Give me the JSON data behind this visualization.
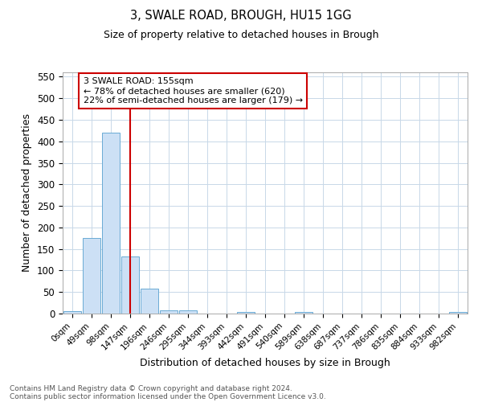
{
  "title1": "3, SWALE ROAD, BROUGH, HU15 1GG",
  "title2": "Size of property relative to detached houses in Brough",
  "xlabel": "Distribution of detached houses by size in Brough",
  "ylabel": "Number of detached properties",
  "bin_labels": [
    "0sqm",
    "49sqm",
    "98sqm",
    "147sqm",
    "196sqm",
    "246sqm",
    "295sqm",
    "344sqm",
    "393sqm",
    "442sqm",
    "491sqm",
    "540sqm",
    "589sqm",
    "638sqm",
    "687sqm",
    "737sqm",
    "786sqm",
    "835sqm",
    "884sqm",
    "933sqm",
    "982sqm"
  ],
  "bar_values": [
    5,
    175,
    420,
    132,
    57,
    8,
    8,
    0,
    0,
    4,
    0,
    0,
    4,
    0,
    0,
    0,
    0,
    0,
    0,
    0,
    3
  ],
  "bar_color": "#cce0f5",
  "bar_edge_color": "#6aaad4",
  "vline_x": 3,
  "vline_color": "#cc0000",
  "annotation_text": "3 SWALE ROAD: 155sqm\n← 78% of detached houses are smaller (620)\n22% of semi-detached houses are larger (179) →",
  "annotation_box_color": "#ffffff",
  "annotation_box_edge": "#cc0000",
  "ylim": [
    0,
    560
  ],
  "yticks": [
    0,
    50,
    100,
    150,
    200,
    250,
    300,
    350,
    400,
    450,
    500,
    550
  ],
  "footer1": "Contains HM Land Registry data © Crown copyright and database right 2024.",
  "footer2": "Contains public sector information licensed under the Open Government Licence v3.0.",
  "bg_color": "#ffffff",
  "grid_color": "#c8d8e8"
}
